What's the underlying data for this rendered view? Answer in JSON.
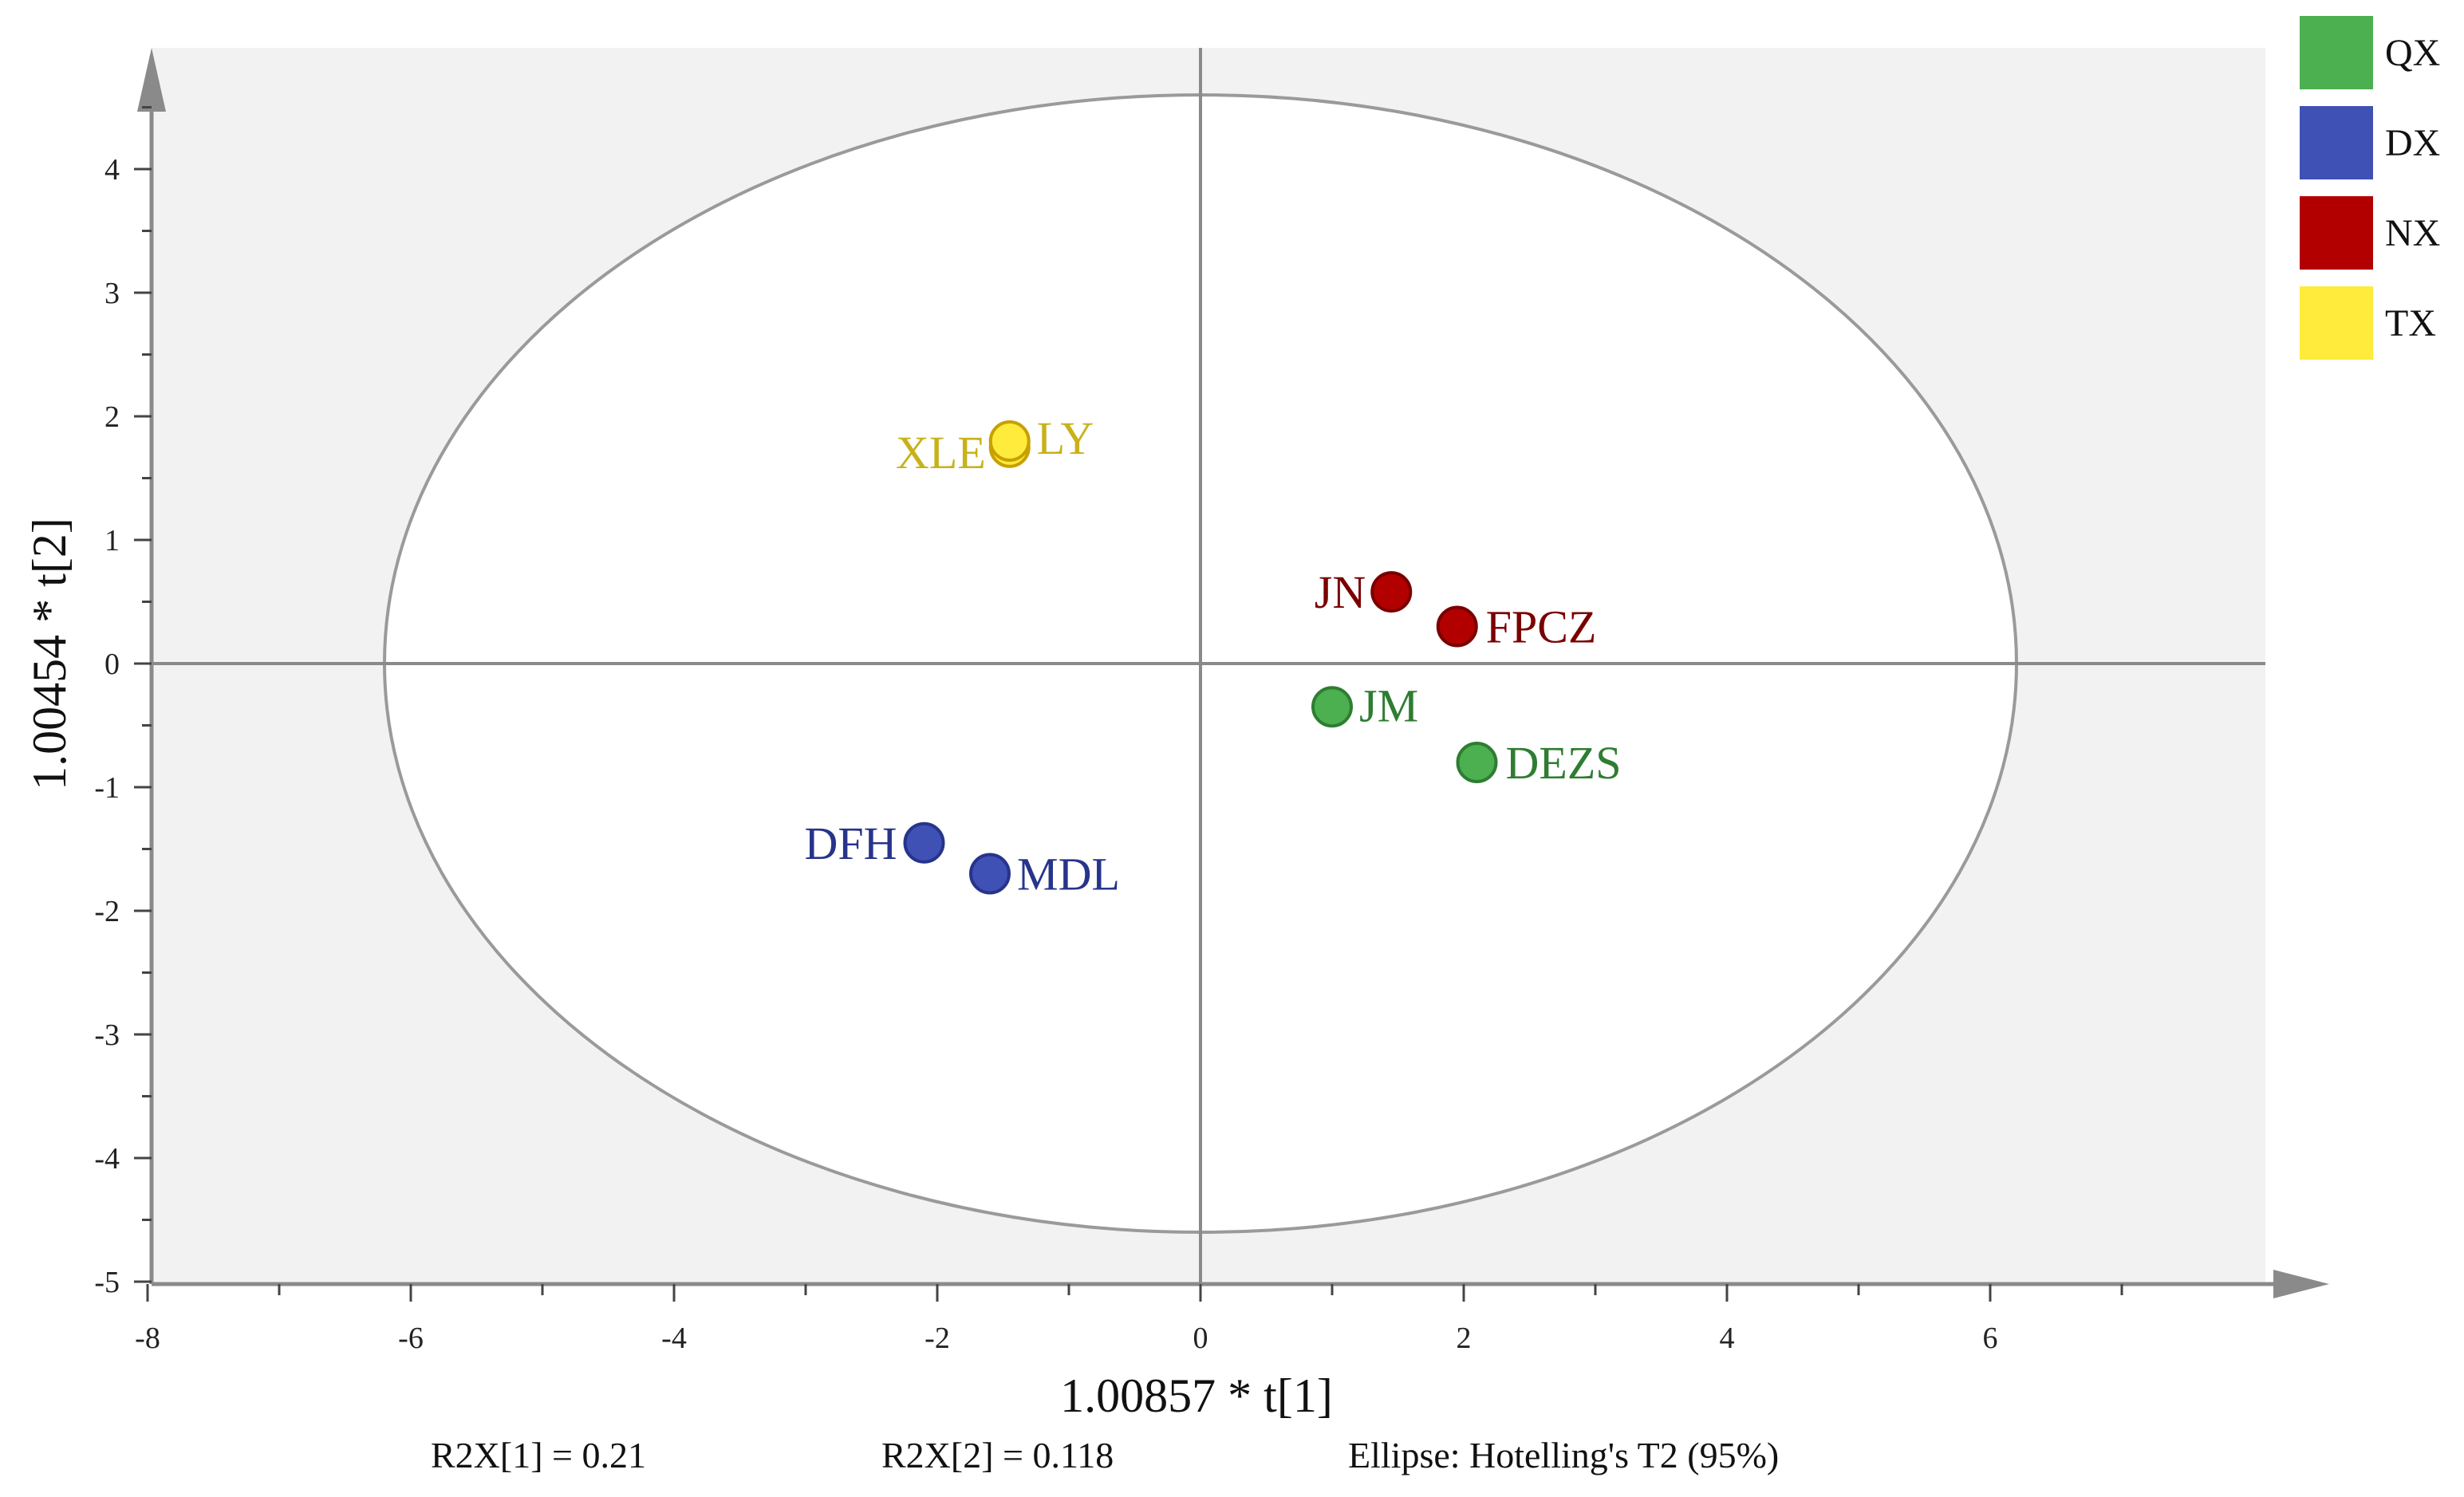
{
  "chart_data": {
    "type": "scatter",
    "xlabel": "1.00857 * t[1]",
    "ylabel": "1.00454 * t[2]",
    "xlim": [
      -8,
      8
    ],
    "ylim": [
      -5,
      5
    ],
    "x_ticks": [
      -8,
      -6,
      -4,
      -2,
      0,
      2,
      4,
      6
    ],
    "y_ticks": [
      -5,
      -4,
      -3,
      -2,
      -1,
      0,
      1,
      2,
      3,
      4
    ],
    "grid": false,
    "background": "#f2f2f2",
    "legend_position": "right",
    "ellipse": {
      "center": [
        0,
        0
      ],
      "rx": 6.2,
      "ry": 4.6
    },
    "series": [
      {
        "name": "QX",
        "color": "#4caf50",
        "points": [
          {
            "label": "JM",
            "x": 1.0,
            "y": -0.35
          },
          {
            "label": "DEZS",
            "x": 2.1,
            "y": -0.8
          }
        ]
      },
      {
        "name": "DX",
        "color": "#3f51b5",
        "points": [
          {
            "label": "DFH",
            "x": -2.1,
            "y": -1.45
          },
          {
            "label": "MDL",
            "x": -1.6,
            "y": -1.7
          }
        ]
      },
      {
        "name": "NX",
        "color": "#b20000",
        "points": [
          {
            "label": "JN",
            "x": 1.45,
            "y": 0.58
          },
          {
            "label": "FPCZ",
            "x": 1.95,
            "y": 0.3
          }
        ]
      },
      {
        "name": "TX",
        "color": "#ffeb3b",
        "label_color": "#c8b21a",
        "points": [
          {
            "label": "XLE",
            "x": -1.45,
            "y": 1.75
          },
          {
            "label": "LY",
            "x": -1.45,
            "y": 1.8
          }
        ]
      }
    ],
    "footer": {
      "r2x1": "R2X[1] = 0.21",
      "r2x2": "R2X[2] = 0.118",
      "ellipse_note": "Ellipse: Hotelling's T2 (95%)"
    }
  }
}
